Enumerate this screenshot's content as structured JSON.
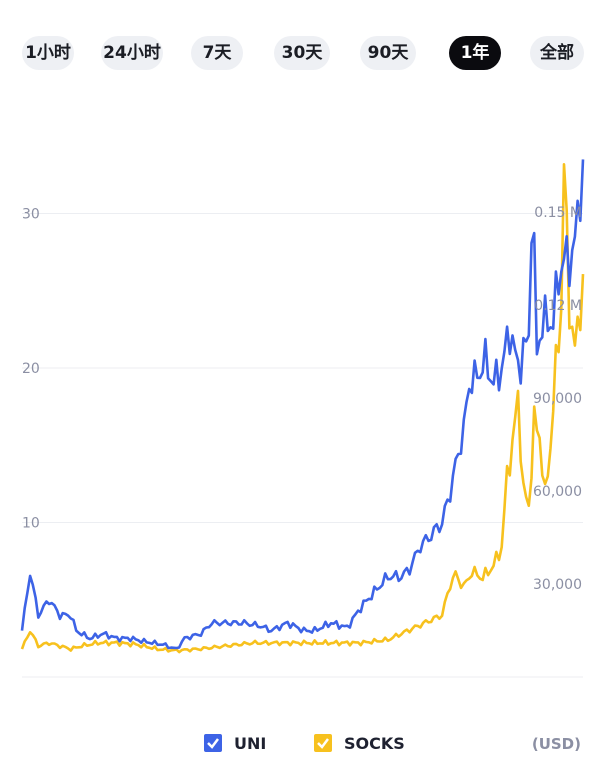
{
  "tabs": [
    {
      "label": "1小时",
      "active": false
    },
    {
      "label": "24小时",
      "active": false
    },
    {
      "label": "7天",
      "active": false
    },
    {
      "label": "30天",
      "active": false
    },
    {
      "label": "90天",
      "active": false
    },
    {
      "label": "1年",
      "active": true
    },
    {
      "label": "全部",
      "active": false
    }
  ],
  "legend": {
    "uni_label": "UNI",
    "socks_label": "SOCKS",
    "unit_label": "(USD)"
  },
  "colors": {
    "uni": "#3d63e6",
    "socks": "#f7c11e",
    "grid": "#eceef2",
    "left_axis_text": "#8b8fa3",
    "right_axis_text": "#8b8fa3"
  },
  "chart_data": {
    "type": "line",
    "grid": true,
    "x_points": 200,
    "left_axis": {
      "ticks": [
        10,
        20,
        30
      ],
      "range": [
        0,
        33
      ]
    },
    "right_axis": {
      "ticks": [
        "30,000",
        "60,000",
        "90,000",
        "0.12 M",
        "0.15 M"
      ],
      "tick_values": [
        30000,
        60000,
        90000,
        120000,
        150000
      ],
      "range": [
        0,
        165000
      ]
    },
    "series": [
      {
        "name": "UNI",
        "axis": "left",
        "keypoints": [
          [
            0,
            3
          ],
          [
            3,
            6.8
          ],
          [
            6,
            4
          ],
          [
            10,
            5
          ],
          [
            14,
            4
          ],
          [
            18,
            4
          ],
          [
            20,
            3
          ],
          [
            25,
            2.5
          ],
          [
            30,
            2.8
          ],
          [
            35,
            2.5
          ],
          [
            40,
            2.5
          ],
          [
            45,
            2.3
          ],
          [
            52,
            2.1
          ],
          [
            57,
            1.8
          ],
          [
            60,
            2.5
          ],
          [
            66,
            2.8
          ],
          [
            70,
            3.5
          ],
          [
            76,
            3.5
          ],
          [
            82,
            3.5
          ],
          [
            88,
            3.3
          ],
          [
            92,
            3
          ],
          [
            98,
            3.5
          ],
          [
            104,
            3
          ],
          [
            108,
            3
          ],
          [
            114,
            3.5
          ],
          [
            120,
            3.2
          ],
          [
            125,
            4.5
          ],
          [
            130,
            5.5
          ],
          [
            135,
            6.5
          ],
          [
            140,
            6.5
          ],
          [
            143,
            7
          ],
          [
            147,
            8.5
          ],
          [
            150,
            9
          ],
          [
            155,
            10
          ],
          [
            158,
            12
          ],
          [
            161,
            14.5
          ],
          [
            163,
            16
          ],
          [
            165,
            19
          ],
          [
            168,
            19.5
          ],
          [
            171,
            20.5
          ],
          [
            174,
            19
          ],
          [
            177,
            20
          ],
          [
            180,
            22.5
          ],
          [
            183,
            20
          ],
          [
            185,
            21
          ],
          [
            187,
            22
          ],
          [
            188,
            30
          ],
          [
            189,
            27
          ],
          [
            190,
            21
          ],
          [
            192,
            23
          ],
          [
            194,
            23
          ],
          [
            196,
            23
          ],
          [
            198,
            26
          ],
          [
            200,
            27
          ],
          [
            202,
            27
          ],
          [
            204,
            28
          ],
          [
            207,
            33.5
          ]
        ]
      },
      {
        "name": "SOCKS",
        "axis": "right",
        "keypoints": [
          [
            0,
            9000
          ],
          [
            3,
            15000
          ],
          [
            6,
            10000
          ],
          [
            10,
            11000
          ],
          [
            14,
            10000
          ],
          [
            18,
            9000
          ],
          [
            22,
            10000
          ],
          [
            28,
            11000
          ],
          [
            35,
            11000
          ],
          [
            42,
            10500
          ],
          [
            50,
            9000
          ],
          [
            57,
            8500
          ],
          [
            65,
            9000
          ],
          [
            75,
            10000
          ],
          [
            85,
            11000
          ],
          [
            95,
            11000
          ],
          [
            105,
            11000
          ],
          [
            115,
            11000
          ],
          [
            125,
            11000
          ],
          [
            135,
            12000
          ],
          [
            140,
            14000
          ],
          [
            145,
            16000
          ],
          [
            150,
            18000
          ],
          [
            155,
            20000
          ],
          [
            158,
            30000
          ],
          [
            160,
            33000
          ],
          [
            163,
            29000
          ],
          [
            166,
            34000
          ],
          [
            170,
            32000
          ],
          [
            174,
            36000
          ],
          [
            177,
            42000
          ],
          [
            179,
            65000
          ],
          [
            181,
            75000
          ],
          [
            183,
            90000
          ],
          [
            185,
            60000
          ],
          [
            187,
            55000
          ],
          [
            189,
            82000
          ],
          [
            191,
            78000
          ],
          [
            193,
            58000
          ],
          [
            195,
            75000
          ],
          [
            197,
            100000
          ],
          [
            199,
            120000
          ],
          [
            200,
            165000
          ],
          [
            202,
            120000
          ],
          [
            204,
            105000
          ],
          [
            206,
            120000
          ],
          [
            207,
            130000
          ]
        ]
      }
    ]
  }
}
